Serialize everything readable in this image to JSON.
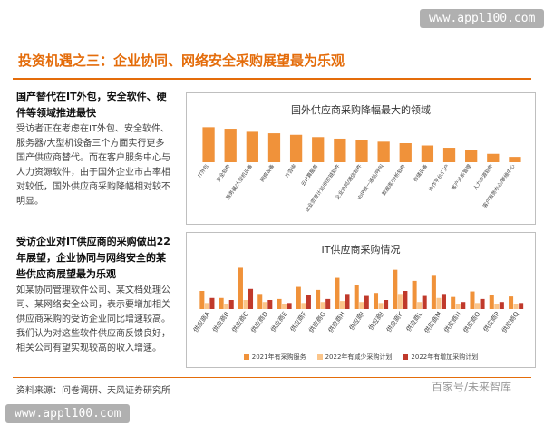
{
  "watermark": "www.appl100.com",
  "title": "投资机遇之三：企业协同、网络安全采购展望最为乐观",
  "left": {
    "sec1_head": "国产替代在IT外包，安全软件、硬件等领域推进最快",
    "sec1_body": "受访者正在考虑在IT外包、安全软件、服务器/大型机设备三个方面实行更多国产供应商替代。而在客户服务中心与人力资源软件，由于国外企业市占率相对较低，国外供应商采购降幅相对较不明显。",
    "sec2_head": "受访企业对IT供应商的采购做出22年展望，企业协同与网络安全的某些供应商展望最为乐观",
    "sec2_body": "如某协同管理软件公司、某文档处理公司、某网络安全公司，表示要增加相关供应商采购的受访企业同比增速较高。我们认为对这些软件供应商反馈良好，相关公司有望实现较高的收入增速。"
  },
  "source": "资料来源：问卷调研、天风证券研究所",
  "brand": "百家号/未来智库",
  "colors": {
    "accent": "#e46c0a",
    "bar_orange": "#f0923a",
    "series_a": "#f0923a",
    "series_b": "#fbc58a",
    "series_c": "#c0392b"
  },
  "chart_data": [
    {
      "type": "bar",
      "title": "国外供应商采购降幅最大的领域",
      "categories": [
        "IT外包",
        "安全软件",
        "服务器/大型机设备",
        "网络设备",
        "IT咨询",
        "云计算服务",
        "企业资源计划/供应链软件",
        "企业协同/通信软件",
        "VoIP统一通信/呼叫",
        "数据库/分析软件",
        "存储设备",
        "协作平台/门户",
        "客户关系管理",
        "人力资源软件",
        "客户服务中心/联络中心"
      ],
      "values": [
        46,
        44,
        40,
        38,
        36,
        33,
        31,
        29,
        27,
        25,
        22,
        19,
        16,
        11,
        7
      ]
    },
    {
      "type": "bar",
      "title": "IT供应商采购情况",
      "categories": [
        "供应商A",
        "供应商B",
        "供应商C",
        "供应商D",
        "供应商E",
        "供应商F",
        "供应商G",
        "供应商H",
        "供应商I",
        "供应商J",
        "供应商K",
        "供应商L",
        "供应商M",
        "供应商N",
        "供应商O",
        "供应商P",
        "供应商Q"
      ],
      "series": [
        {
          "name": "2021年有采购服务",
          "values": [
            36,
            22,
            82,
            30,
            20,
            44,
            38,
            62,
            48,
            32,
            78,
            56,
            66,
            24,
            35,
            28,
            25
          ]
        },
        {
          "name": "2022年有减少采购计划",
          "values": [
            12,
            10,
            18,
            14,
            9,
            12,
            14,
            16,
            14,
            12,
            30,
            14,
            22,
            10,
            12,
            10,
            9
          ]
        },
        {
          "name": "2022年有增加采购计划",
          "values": [
            22,
            18,
            40,
            18,
            12,
            28,
            20,
            30,
            26,
            18,
            36,
            26,
            30,
            14,
            20,
            14,
            12
          ]
        }
      ]
    }
  ]
}
